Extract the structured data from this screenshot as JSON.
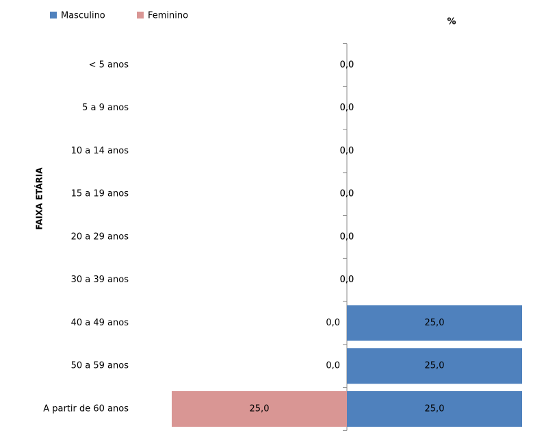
{
  "chart_data": {
    "type": "pyramid",
    "title": "%",
    "y_axis_label": "FAIXA ETÁRIA",
    "categories": [
      "< 5 anos",
      "5 a 9 anos",
      "10 a 14 anos",
      "15 a 19 anos",
      "20 a 29 anos",
      "30 a 39 anos",
      "40 a 49 anos",
      "50 a 59 anos",
      "A partir de 60 anos"
    ],
    "series": [
      {
        "name": "Masculino",
        "color": "#4f81bd",
        "side": "right",
        "values": [
          0,
          0,
          0,
          0,
          0,
          0,
          25,
          25,
          25
        ],
        "value_labels": [
          "0,0",
          "0,0",
          "0,0",
          "0,0",
          "0,0",
          "0,0",
          "25,0",
          "25,0",
          "25,0"
        ]
      },
      {
        "name": "Feminino",
        "color": "#d99694",
        "side": "left",
        "values": [
          0,
          0,
          0,
          0,
          0,
          0,
          0,
          0,
          25
        ],
        "value_labels": [
          "0,0",
          "0,0",
          "0,0",
          "0,0",
          "0,0",
          "0,0",
          "0,0",
          "0,0",
          "25,0"
        ]
      }
    ],
    "xlim": [
      -25,
      25
    ],
    "legend": "top-left"
  }
}
